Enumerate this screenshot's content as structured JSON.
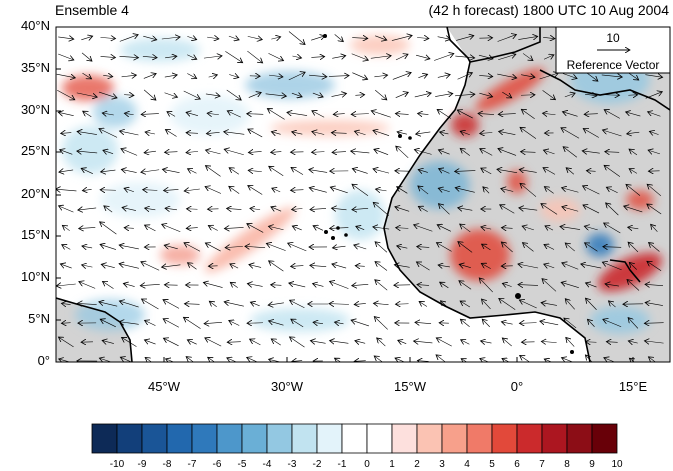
{
  "titles": {
    "left": "Ensemble 4",
    "right": "(42 h forecast) 1800 UTC 10 Aug 2004"
  },
  "reference_vector": {
    "value": "10",
    "label": "Reference Vector"
  },
  "axes": {
    "lat_labels": [
      "40°N",
      "35°N",
      "30°N",
      "25°N",
      "20°N",
      "15°N",
      "10°N",
      "5°N",
      "0°"
    ],
    "lon_labels": [
      "45°W",
      "30°W",
      "15°W",
      "0°",
      "15°E"
    ]
  },
  "colorbar": {
    "labels": [
      "-10",
      "-9",
      "-8",
      "-7",
      "-6",
      "-5",
      "-4",
      "-3",
      "-2",
      "-1",
      "0",
      "1",
      "2",
      "3",
      "4",
      "5",
      "6",
      "7",
      "8",
      "9",
      "10"
    ],
    "colors": [
      "#0d2a57",
      "#123f7a",
      "#1a5597",
      "#2268ae",
      "#2f79bb",
      "#4d97cb",
      "#6aafd6",
      "#93c8e2",
      "#c1e3f0",
      "#e3f3fa",
      "#ffffff",
      "#ffffff",
      "#fde0dd",
      "#fbc3b3",
      "#f7a08b",
      "#f07a68",
      "#e2493a",
      "#cb2a2c",
      "#ac1620",
      "#8c0d16",
      "#680008"
    ]
  },
  "map": {
    "land_color": "#d3d3d3",
    "coast_color": "#000000"
  }
}
